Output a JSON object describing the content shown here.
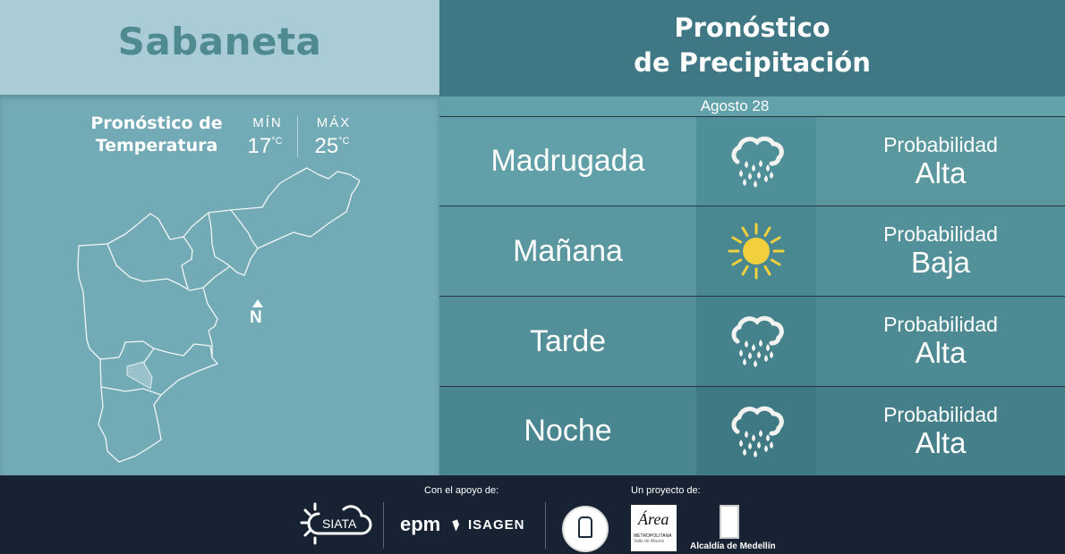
{
  "location": {
    "name": "Sabaneta"
  },
  "temperature": {
    "title_line1": "Pronóstico de",
    "title_line2": "Temperatura",
    "min_label": "MÍN",
    "min_value": "17",
    "max_label": "MÁX",
    "max_value": "25",
    "unit": "°C"
  },
  "map": {
    "north_label": "N"
  },
  "precipitation": {
    "title_line1": "Pronóstico",
    "title_line2": "de Precipitación",
    "date": "Agosto 28",
    "rows": [
      {
        "period": "Madrugada",
        "icon": "rain-cloud-icon",
        "prob_label": "Probabilidad",
        "prob_value": "Alta"
      },
      {
        "period": "Mañana",
        "icon": "sun-icon",
        "prob_label": "Probabilidad",
        "prob_value": "Baja"
      },
      {
        "period": "Tarde",
        "icon": "rain-cloud-icon",
        "prob_label": "Probabilidad",
        "prob_value": "Alta"
      },
      {
        "period": "Noche",
        "icon": "rain-cloud-icon",
        "prob_label": "Probabilidad",
        "prob_value": "Alta"
      }
    ]
  },
  "footer": {
    "support_label": "Con el apoyo de:",
    "project_label": "Un proyecto de:",
    "logos": {
      "siata": "SIATA",
      "epm": "epm",
      "isagen": "ISAGEN",
      "area_line1": "Área",
      "area_line2": "METROPOLITANA",
      "area_line3": "Valle de Aburrá",
      "alcaldia": "Alcaldía de Medellín"
    }
  },
  "colors": {
    "sun": "#f2cf3c",
    "header": "#3f7884",
    "map_bg": "#72aab5",
    "footer": "#172232"
  }
}
